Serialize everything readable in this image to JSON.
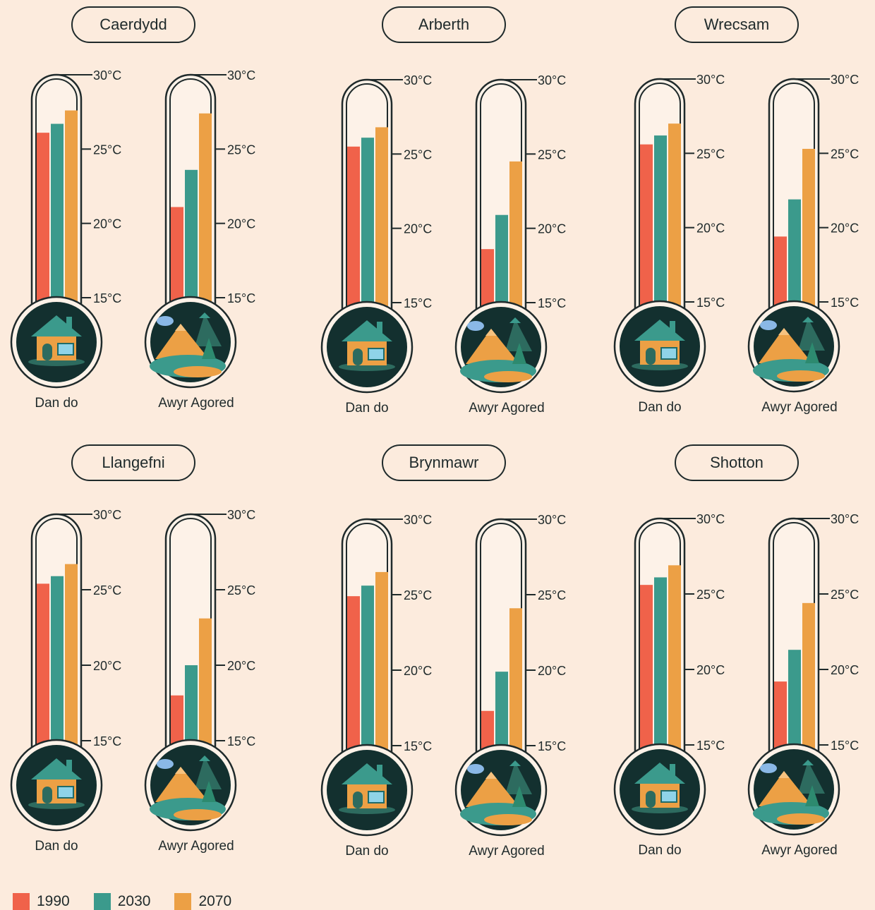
{
  "colors": {
    "background": "#fcebdd",
    "outline": "#1f2a2b",
    "series_1990": "#f0624a",
    "series_2030": "#3b9a8c",
    "series_2070": "#eca045",
    "bulb": "#13302f"
  },
  "tick_labels": [
    "30°C",
    "25°C",
    "20°C",
    "15°C"
  ],
  "legend": [
    {
      "label": "1990",
      "color": "#f0624a"
    },
    {
      "label": "2030",
      "color": "#3b9a8c"
    },
    {
      "label": "2070",
      "color": "#eca045"
    }
  ],
  "chart_data": [
    {
      "type": "bar",
      "title": "Caerdydd",
      "categories": [
        "Dan do",
        "Awyr Agored"
      ],
      "ylim": [
        15,
        30
      ],
      "ticks": [
        15,
        20,
        25,
        30
      ],
      "series": [
        {
          "name": "1990",
          "values": [
            26.1,
            21.1
          ]
        },
        {
          "name": "2030",
          "values": [
            26.7,
            23.6
          ]
        },
        {
          "name": "2070",
          "values": [
            27.6,
            27.4
          ]
        }
      ]
    },
    {
      "type": "bar",
      "title": "Arberth",
      "categories": [
        "Dan do",
        "Awyr Agored"
      ],
      "ylim": [
        15,
        30
      ],
      "ticks": [
        15,
        20,
        25,
        30
      ],
      "series": [
        {
          "name": "1990",
          "values": [
            25.5,
            18.6
          ]
        },
        {
          "name": "2030",
          "values": [
            26.1,
            20.9
          ]
        },
        {
          "name": "2070",
          "values": [
            26.8,
            24.5
          ]
        }
      ]
    },
    {
      "type": "bar",
      "title": "Wrecsam",
      "categories": [
        "Dan do",
        "Awyr Agored"
      ],
      "ylim": [
        15,
        30
      ],
      "ticks": [
        15,
        20,
        25,
        30
      ],
      "series": [
        {
          "name": "1990",
          "values": [
            25.6,
            19.4
          ]
        },
        {
          "name": "2030",
          "values": [
            26.2,
            21.9
          ]
        },
        {
          "name": "2070",
          "values": [
            27.0,
            25.3
          ]
        }
      ]
    },
    {
      "type": "bar",
      "title": "Llangefni",
      "categories": [
        "Dan do",
        "Awyr Agored"
      ],
      "ylim": [
        15,
        30
      ],
      "ticks": [
        15,
        20,
        25,
        30
      ],
      "series": [
        {
          "name": "1990",
          "values": [
            25.4,
            18.0
          ]
        },
        {
          "name": "2030",
          "values": [
            25.9,
            20.0
          ]
        },
        {
          "name": "2070",
          "values": [
            26.7,
            23.1
          ]
        }
      ]
    },
    {
      "type": "bar",
      "title": "Brynmawr",
      "categories": [
        "Dan do",
        "Awyr Agored"
      ],
      "ylim": [
        15,
        30
      ],
      "ticks": [
        15,
        20,
        25,
        30
      ],
      "series": [
        {
          "name": "1990",
          "values": [
            24.9,
            17.3
          ]
        },
        {
          "name": "2030",
          "values": [
            25.6,
            19.9
          ]
        },
        {
          "name": "2070",
          "values": [
            26.5,
            24.1
          ]
        }
      ]
    },
    {
      "type": "bar",
      "title": "Shotton",
      "categories": [
        "Dan do",
        "Awyr Agored"
      ],
      "ylim": [
        15,
        30
      ],
      "ticks": [
        15,
        20,
        25,
        30
      ],
      "series": [
        {
          "name": "1990",
          "values": [
            25.6,
            19.2
          ]
        },
        {
          "name": "2030",
          "values": [
            26.1,
            21.3
          ]
        },
        {
          "name": "2070",
          "values": [
            26.9,
            24.4
          ]
        }
      ]
    }
  ]
}
